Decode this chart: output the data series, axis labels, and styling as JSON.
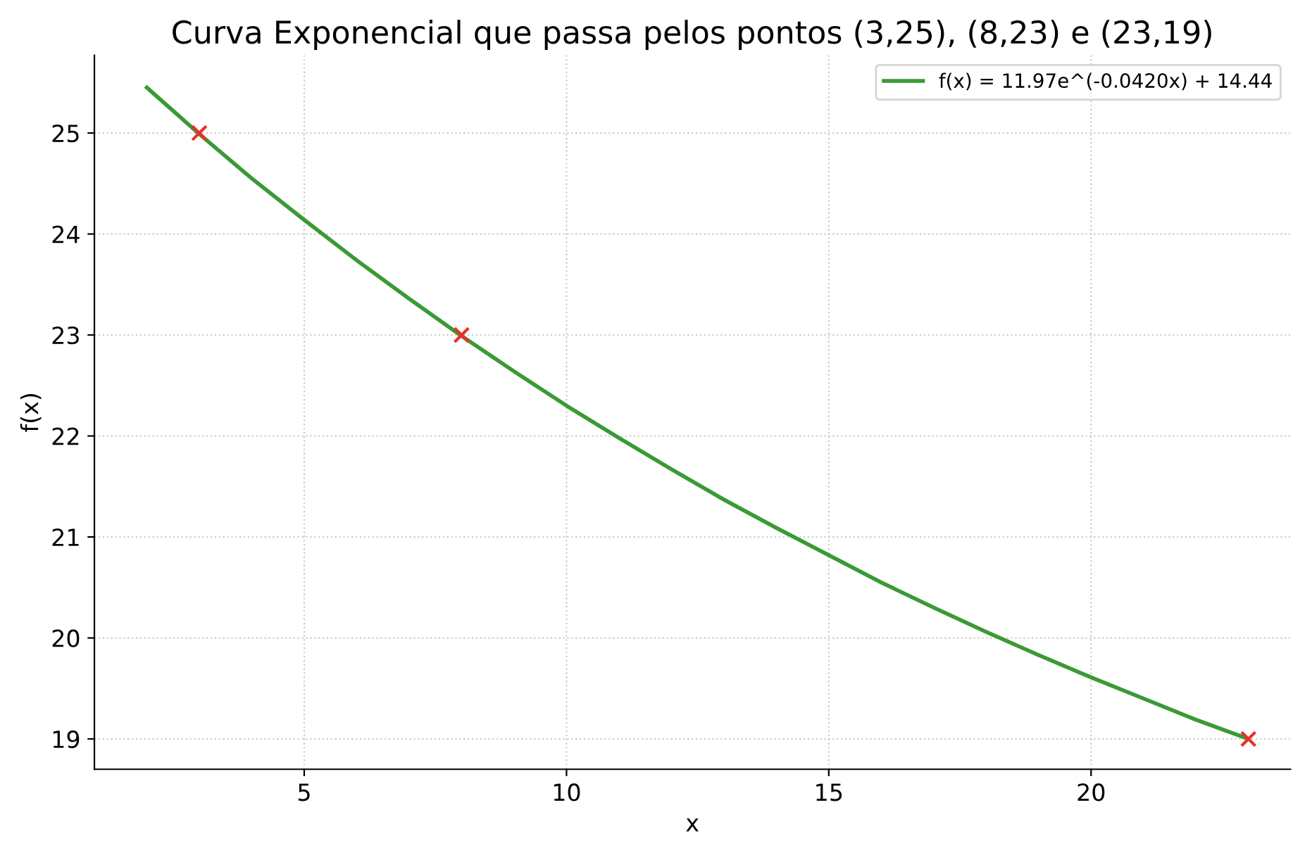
{
  "chart_data": {
    "type": "line",
    "title": "Curva Exponencial que passa pelos pontos (3,25), (8,23) e (23,19)",
    "xlabel": "x",
    "ylabel": "f(x)",
    "xlim": [
      1,
      23.8
    ],
    "ylim": [
      18.7,
      25.77
    ],
    "xticks": [
      5,
      10,
      15,
      20
    ],
    "yticks": [
      19,
      20,
      21,
      22,
      23,
      24,
      25
    ],
    "grid": true,
    "legend": "top right",
    "series": [
      {
        "name": "f(x) = 11.97e^(-0.0420x) + 14.44",
        "color": "#3a9a35",
        "marker": "none",
        "line_style": "solid",
        "x": [
          2,
          3,
          4,
          5,
          6,
          7,
          8,
          9,
          10,
          11,
          12,
          13,
          14,
          15,
          16,
          17,
          18,
          19,
          20,
          21,
          22,
          23
        ],
        "values": [
          25.45,
          24.99,
          24.55,
          24.14,
          23.74,
          23.36,
          22.99,
          22.64,
          22.3,
          21.98,
          21.67,
          21.37,
          21.09,
          20.82,
          20.55,
          20.3,
          20.06,
          19.83,
          19.61,
          19.4,
          19.19,
          19.0
        ]
      },
      {
        "type": "scatter",
        "color": "#e8302a",
        "marker": "cross",
        "x": [
          3,
          8,
          23
        ],
        "values": [
          25,
          23,
          19
        ]
      }
    ]
  }
}
